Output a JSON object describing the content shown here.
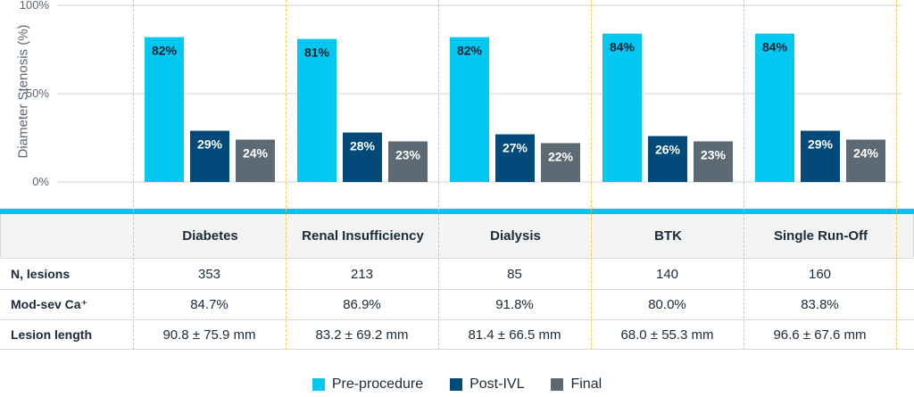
{
  "chart_data": {
    "type": "bar",
    "ylabel": "Diameter Stenosis (%)",
    "ylim": [
      0,
      100
    ],
    "yticks": [
      "0%",
      "50%",
      "100%"
    ],
    "categories": [
      "Diabetes",
      "Renal Insufficiency",
      "Dialysis",
      "BTK",
      "Single Run-Off"
    ],
    "series": [
      {
        "name": "Pre-procedure",
        "color": "#00c8f0",
        "values": [
          82,
          81,
          82,
          84,
          84
        ],
        "labels": [
          "82%",
          "81%",
          "82%",
          "84%",
          "84%"
        ]
      },
      {
        "name": "Post-IVL",
        "color": "#024a7a",
        "values": [
          29,
          28,
          27,
          26,
          29
        ],
        "labels": [
          "29%",
          "28%",
          "27%",
          "26%",
          "29%"
        ]
      },
      {
        "name": "Final",
        "color": "#5e6a73",
        "values": [
          24,
          23,
          22,
          23,
          24
        ],
        "labels": [
          "24%",
          "23%",
          "22%",
          "23%",
          "24%"
        ]
      }
    ],
    "legend_position": "bottom-center"
  },
  "table": {
    "headers": [
      "Diabetes",
      "Renal Insufficiency",
      "Dialysis",
      "BTK",
      "Single Run-Off"
    ],
    "rows": [
      {
        "label": "N, lesions",
        "values": [
          "353",
          "213",
          "85",
          "140",
          "160"
        ]
      },
      {
        "label": "Mod-sev Ca⁺",
        "values": [
          "84.7%",
          "86.9%",
          "91.8%",
          "80.0%",
          "83.8%"
        ]
      },
      {
        "label": "Lesion length",
        "values": [
          "90.8 ± 75.9 mm",
          "83.2 ± 69.2 mm",
          "81.4 ± 66.5 mm",
          "68.0 ± 55.3 mm",
          "96.6 ± 67.6 mm"
        ]
      }
    ]
  },
  "colors": {
    "accent": "#00c3ef",
    "dash": "#f0c84a"
  }
}
